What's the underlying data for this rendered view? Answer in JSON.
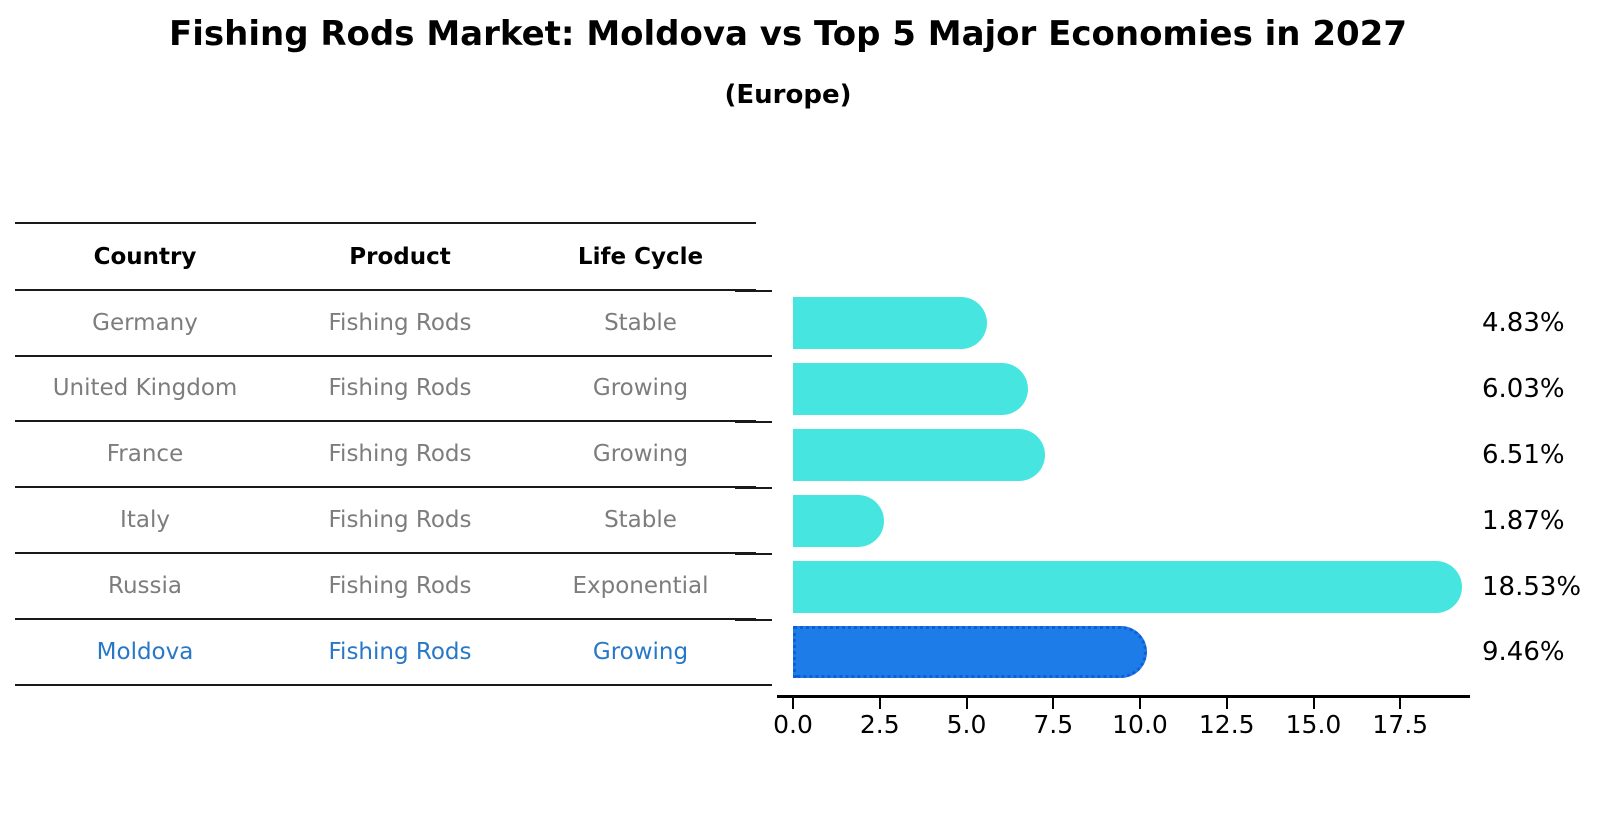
{
  "title": "Fishing Rods Market: Moldova vs Top 5 Major Economies in 2027",
  "subtitle": "(Europe)",
  "table": {
    "headers": [
      "Country",
      "Product",
      "Life Cycle"
    ],
    "rows": [
      {
        "country": "Germany",
        "product": "Fishing Rods",
        "life_cycle": "Stable",
        "highlight": false
      },
      {
        "country": "United Kingdom",
        "product": "Fishing Rods",
        "life_cycle": "Growing",
        "highlight": false
      },
      {
        "country": "France",
        "product": "Fishing Rods",
        "life_cycle": "Growing",
        "highlight": false
      },
      {
        "country": "Italy",
        "product": "Fishing Rods",
        "life_cycle": "Stable",
        "highlight": false
      },
      {
        "country": "Russia",
        "product": "Fishing Rods",
        "life_cycle": "Exponential",
        "highlight": false
      },
      {
        "country": "Moldova",
        "product": "Fishing Rods",
        "life_cycle": "Growing",
        "highlight": true
      }
    ]
  },
  "chart_data": {
    "type": "bar",
    "orientation": "horizontal",
    "title": "Fishing Rods Market: Moldova vs Top 5 Major Economies in 2027",
    "subtitle": "(Europe)",
    "categories": [
      "Germany",
      "United Kingdom",
      "France",
      "Italy",
      "Russia",
      "Moldova"
    ],
    "values": [
      4.83,
      6.03,
      6.51,
      1.87,
      18.53,
      9.46
    ],
    "value_labels": [
      "4.83%",
      "6.03%",
      "6.51%",
      "1.87%",
      "18.53%",
      "9.46%"
    ],
    "unit": "%",
    "x_tick_labels": [
      "0.0",
      "2.5",
      "5.0",
      "7.5",
      "10.0",
      "12.5",
      "15.0",
      "17.5"
    ],
    "xlim": [
      0,
      19.5
    ],
    "grid": false,
    "legend": null,
    "bar_color": "#46e5e0",
    "highlight_bar_color": "#1d7ce8",
    "highlight_border_color": "#0f5fd7",
    "highlight_index": 5,
    "highlight_text_color": "#2878c8"
  }
}
